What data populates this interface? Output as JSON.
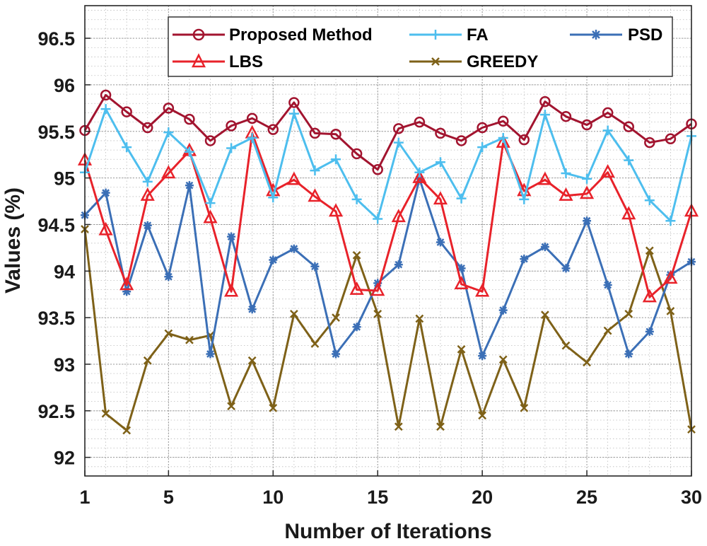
{
  "chart_data": {
    "type": "line",
    "title": "",
    "xlabel": "Number of Iterations",
    "ylabel": "Values (%)",
    "xlim": [
      1,
      30
    ],
    "ylim": [
      91.8,
      96.85
    ],
    "xticks": [
      1,
      5,
      10,
      15,
      20,
      25,
      30
    ],
    "xtick_labels": [
      "1",
      "5",
      "10",
      "15",
      "20",
      "25",
      "30"
    ],
    "yticks": [
      92,
      92.5,
      93,
      93.5,
      94,
      94.5,
      95,
      95.5,
      96,
      96.5
    ],
    "ytick_labels": [
      "92",
      "92.5",
      "93",
      "93.5",
      "94",
      "94.5",
      "95",
      "95.5",
      "96",
      "96.5"
    ],
    "grid": true,
    "legend_position": "top",
    "x": [
      1,
      2,
      3,
      4,
      5,
      6,
      7,
      8,
      9,
      10,
      11,
      12,
      13,
      14,
      15,
      16,
      17,
      18,
      19,
      20,
      21,
      22,
      23,
      24,
      25,
      26,
      27,
      28,
      29,
      30
    ],
    "series": [
      {
        "name": "Proposed Method",
        "color": "#a2142f",
        "marker": "circle",
        "values": [
          95.51,
          95.89,
          95.71,
          95.54,
          95.75,
          95.63,
          95.4,
          95.56,
          95.64,
          95.52,
          95.81,
          95.48,
          95.47,
          95.26,
          95.09,
          95.53,
          95.6,
          95.48,
          95.4,
          95.54,
          95.61,
          95.41,
          95.82,
          95.66,
          95.57,
          95.7,
          95.55,
          95.38,
          95.42,
          95.58
        ]
      },
      {
        "name": "FA",
        "color": "#4dbeee",
        "marker": "plus",
        "values": [
          95.06,
          95.74,
          95.33,
          94.96,
          95.49,
          95.28,
          94.73,
          95.32,
          95.43,
          94.79,
          95.69,
          95.08,
          95.2,
          94.77,
          94.56,
          95.38,
          95.06,
          95.17,
          94.78,
          95.33,
          95.43,
          94.77,
          95.68,
          95.05,
          94.99,
          95.51,
          95.19,
          94.76,
          94.54,
          95.45
        ]
      },
      {
        "name": "PSD",
        "color": "#3b6fb6",
        "marker": "asterisk",
        "values": [
          94.6,
          94.84,
          93.78,
          94.49,
          93.94,
          94.92,
          93.11,
          94.37,
          93.59,
          94.12,
          94.24,
          94.05,
          93.11,
          93.4,
          93.87,
          94.07,
          94.99,
          94.31,
          94.03,
          93.09,
          93.58,
          94.13,
          94.26,
          94.03,
          94.54,
          93.85,
          93.11,
          93.35,
          93.96,
          94.1
        ]
      },
      {
        "name": "LBS",
        "color": "#e8222a",
        "marker": "triangle",
        "values": [
          95.19,
          94.44,
          93.85,
          94.81,
          95.05,
          95.29,
          94.57,
          93.78,
          95.48,
          94.86,
          94.98,
          94.8,
          94.64,
          93.8,
          93.79,
          94.58,
          95.0,
          94.77,
          93.86,
          93.78,
          95.38,
          94.86,
          94.98,
          94.81,
          94.83,
          95.06,
          94.61,
          93.72,
          93.92,
          94.64
        ]
      },
      {
        "name": "GREEDY",
        "color": "#7e6118",
        "marker": "x",
        "values": [
          94.45,
          92.47,
          92.29,
          93.04,
          93.33,
          93.26,
          93.31,
          92.55,
          93.04,
          92.53,
          93.54,
          93.22,
          93.5,
          94.17,
          93.54,
          92.33,
          93.49,
          92.33,
          93.16,
          92.45,
          93.05,
          92.53,
          93.53,
          93.2,
          93.02,
          93.36,
          93.54,
          94.22,
          93.57,
          92.3
        ]
      }
    ]
  }
}
